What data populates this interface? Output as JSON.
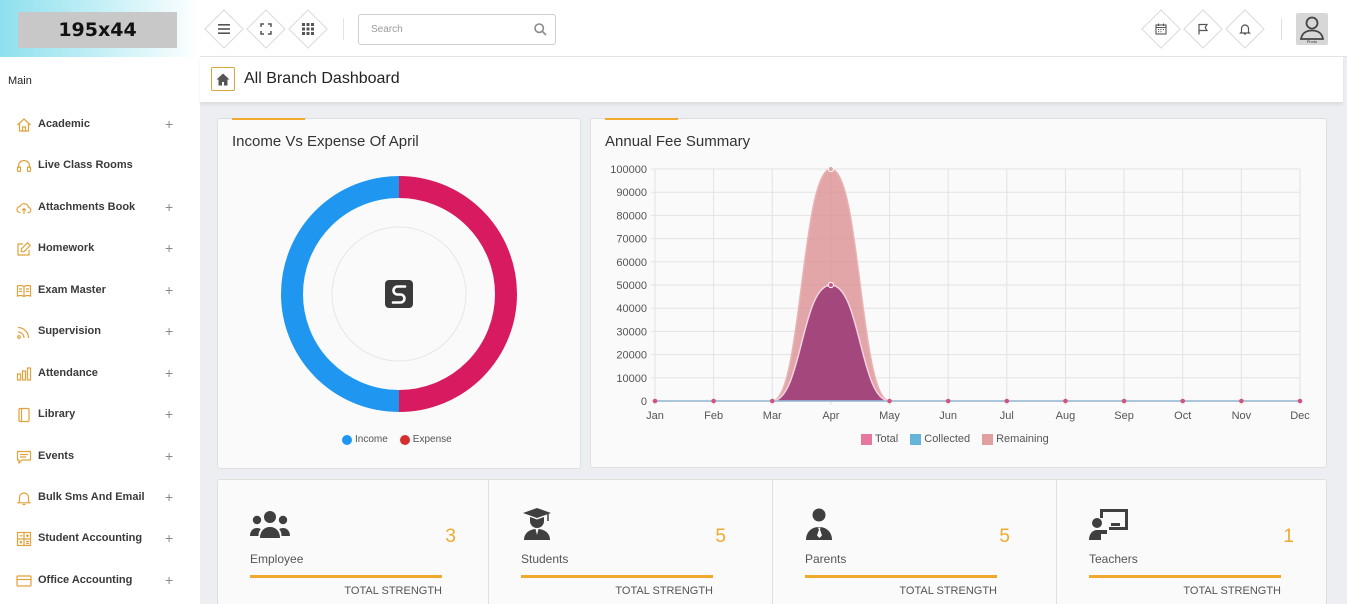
{
  "header": {
    "logo_text": "195x44",
    "search_placeholder": "Search",
    "avatar_tag": "Photo"
  },
  "sidebar": {
    "heading": "Main",
    "items": [
      {
        "label": "Academic",
        "icon": "home-icon",
        "expandable": true
      },
      {
        "label": "Live Class Rooms",
        "icon": "headset-icon",
        "expandable": false
      },
      {
        "label": "Attachments Book",
        "icon": "cloud-upload-icon",
        "expandable": true
      },
      {
        "label": "Homework",
        "icon": "edit-icon",
        "expandable": true
      },
      {
        "label": "Exam Master",
        "icon": "book-icon",
        "expandable": true
      },
      {
        "label": "Supervision",
        "icon": "rss-icon",
        "expandable": true
      },
      {
        "label": "Attendance",
        "icon": "bar-chart-icon",
        "expandable": true
      },
      {
        "label": "Library",
        "icon": "library-book-icon",
        "expandable": true
      },
      {
        "label": "Events",
        "icon": "message-icon",
        "expandable": true
      },
      {
        "label": "Bulk Sms And Email",
        "icon": "bell-icon",
        "expandable": true
      },
      {
        "label": "Student Accounting",
        "icon": "calculator-icon",
        "expandable": true
      },
      {
        "label": "Office Accounting",
        "icon": "credit-card-icon",
        "expandable": true
      }
    ]
  },
  "page": {
    "title": "All Branch Dashboard"
  },
  "income_card": {
    "title": "Income Vs Expense Of April",
    "legend": [
      {
        "label": "Income",
        "color": "#1f96f0"
      },
      {
        "label": "Expense",
        "color": "#d32f2f"
      }
    ]
  },
  "fee_card": {
    "title": "Annual Fee Summary"
  },
  "chart_data": [
    {
      "type": "pie",
      "title": "Income Vs Expense Of April",
      "categories": [
        "Income",
        "Expense"
      ],
      "values": [
        50,
        50
      ],
      "colors": [
        "#1f96f0",
        "#d81b60"
      ]
    },
    {
      "type": "area",
      "title": "Annual Fee Summary",
      "categories": [
        "Jan",
        "Feb",
        "Mar",
        "Apr",
        "May",
        "Jun",
        "Jul",
        "Aug",
        "Sep",
        "Oct",
        "Nov",
        "Dec"
      ],
      "y_ticks": [
        0,
        10000,
        20000,
        30000,
        40000,
        50000,
        60000,
        70000,
        80000,
        90000,
        100000
      ],
      "ylim": [
        0,
        100000
      ],
      "grid": true,
      "legend_position": "bottom",
      "series": [
        {
          "name": "Total",
          "color": "#e6779f",
          "values": [
            0,
            0,
            0,
            100000,
            0,
            0,
            0,
            0,
            0,
            0,
            0,
            0
          ]
        },
        {
          "name": "Collected",
          "color": "#64b5d9",
          "values": [
            0,
            0,
            0,
            0,
            0,
            0,
            0,
            0,
            0,
            0,
            0,
            0
          ]
        },
        {
          "name": "Remaining",
          "color": "#e0a0a0",
          "values": [
            0,
            0,
            0,
            50000,
            0,
            0,
            0,
            0,
            0,
            0,
            0,
            0
          ]
        }
      ]
    }
  ],
  "stats": [
    {
      "label": "Employee",
      "count": "3",
      "footer": "TOTAL STRENGTH",
      "icon": "users-icon"
    },
    {
      "label": "Students",
      "count": "5",
      "footer": "TOTAL STRENGTH",
      "icon": "graduate-icon"
    },
    {
      "label": "Parents",
      "count": "5",
      "footer": "TOTAL STRENGTH",
      "icon": "user-tie-icon"
    },
    {
      "label": "Teachers",
      "count": "1",
      "footer": "TOTAL STRENGTH",
      "icon": "teacher-board-icon"
    }
  ]
}
